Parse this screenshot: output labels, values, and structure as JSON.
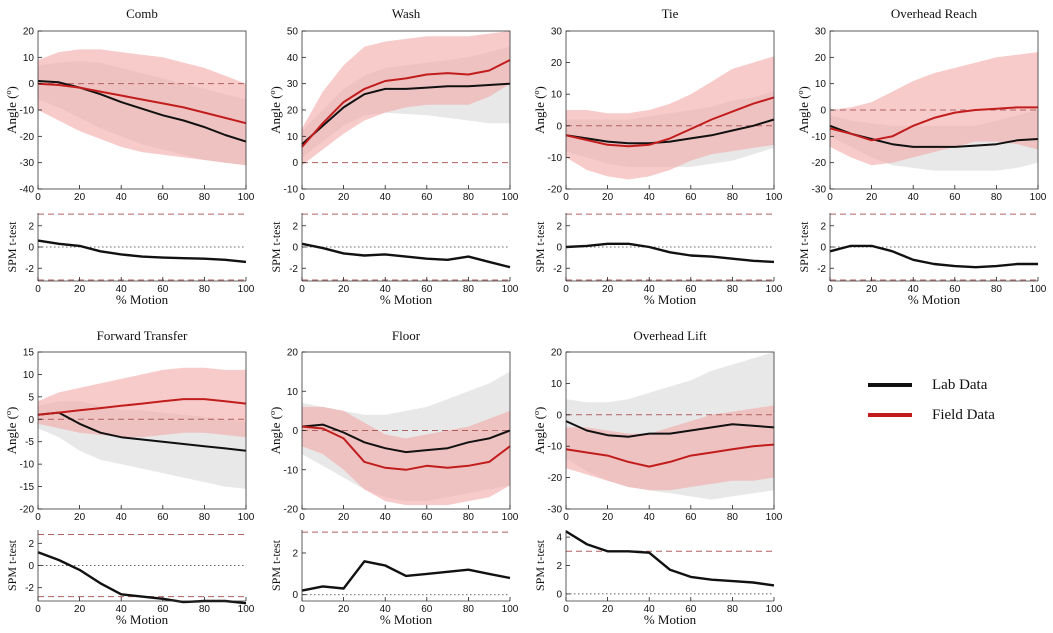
{
  "colors": {
    "lab": "#111111",
    "field": "#c21d1d",
    "field_band": "#f4a9a9",
    "lab_band": "#e6e6e6",
    "ref": "#b06060",
    "tick": "#222222"
  },
  "legend": {
    "lab_label": "Lab Data",
    "field_label": "Field Data"
  },
  "chart_data": [
    {
      "type": "line",
      "title": "Comb",
      "xlabel": "% Motion",
      "ylabel": "Angle (º)",
      "spm_ylabel": "SPM t-test",
      "x": [
        0,
        10,
        20,
        30,
        40,
        50,
        60,
        70,
        80,
        90,
        100
      ],
      "xticks": [
        0,
        20,
        40,
        60,
        80,
        100
      ],
      "ylim": [
        -40,
        20
      ],
      "yticks": [
        -40,
        -30,
        -20,
        -10,
        0,
        10,
        20
      ],
      "ref_lines": [
        0
      ],
      "series": [
        {
          "name": "Lab Data",
          "values": [
            1,
            0.5,
            -1.5,
            -4,
            -7,
            -9.5,
            -12,
            -14,
            -16.5,
            -19.5,
            -22
          ],
          "band_lower": [
            -6,
            -9,
            -13,
            -17,
            -20,
            -23,
            -25,
            -27,
            -29,
            -30,
            -31
          ],
          "band_upper": [
            7,
            8,
            8.5,
            8,
            6,
            4,
            2,
            0,
            -2,
            -4,
            -6
          ]
        },
        {
          "name": "Field Data",
          "values": [
            0,
            -0.5,
            -1.5,
            -3,
            -4.5,
            -6,
            -7.5,
            -9,
            -11,
            -13,
            -15
          ],
          "band_lower": [
            -10,
            -14,
            -18,
            -21,
            -24,
            -26,
            -27,
            -28,
            -29,
            -30,
            -31
          ],
          "band_upper": [
            9,
            12,
            13,
            13,
            12,
            11,
            10,
            8,
            6,
            3,
            0
          ]
        }
      ],
      "spm": {
        "ylim": [
          -3.2,
          3.2
        ],
        "yticks": [
          -2,
          0,
          2
        ],
        "threshold": 3.1,
        "values": [
          0.6,
          0.3,
          0.1,
          -0.4,
          -0.7,
          -0.9,
          -1.0,
          -1.05,
          -1.1,
          -1.2,
          -1.4
        ]
      }
    },
    {
      "type": "line",
      "title": "Wash",
      "xlabel": "% Motion",
      "ylabel": "Angle (º)",
      "spm_ylabel": "SPM t-test",
      "x": [
        0,
        10,
        20,
        30,
        40,
        50,
        60,
        70,
        80,
        90,
        100
      ],
      "xticks": [
        0,
        20,
        40,
        60,
        80,
        100
      ],
      "ylim": [
        -10,
        50
      ],
      "yticks": [
        -10,
        0,
        10,
        20,
        30,
        40,
        50
      ],
      "ref_lines": [
        0
      ],
      "series": [
        {
          "name": "Lab Data",
          "values": [
            7,
            14,
            21,
            26,
            28,
            28,
            28.5,
            29,
            29,
            29.5,
            30
          ],
          "band_lower": [
            2,
            8,
            14,
            18,
            19,
            18.5,
            18,
            17,
            16,
            15,
            15
          ],
          "band_upper": [
            12,
            20,
            28,
            33,
            36,
            37,
            38,
            39,
            40,
            42,
            44
          ]
        },
        {
          "name": "Field Data",
          "values": [
            6,
            15,
            23,
            28,
            31,
            32,
            33.5,
            34,
            33.5,
            35,
            39
          ],
          "band_lower": [
            -1,
            5,
            11,
            16,
            19,
            21,
            22,
            22,
            22,
            25,
            30
          ],
          "band_upper": [
            13,
            27,
            37,
            44,
            46,
            47,
            48,
            48,
            48,
            49,
            50
          ]
        }
      ],
      "spm": {
        "ylim": [
          -3.2,
          3.2
        ],
        "yticks": [
          -2,
          0,
          2
        ],
        "threshold": 3.1,
        "values": [
          0.3,
          -0.1,
          -0.6,
          -0.8,
          -0.7,
          -0.9,
          -1.1,
          -1.2,
          -0.9,
          -1.4,
          -1.9
        ]
      }
    },
    {
      "type": "line",
      "title": "Tie",
      "xlabel": "% Motion",
      "ylabel": "Angle (º)",
      "spm_ylabel": "SPM t-test",
      "x": [
        0,
        10,
        20,
        30,
        40,
        50,
        60,
        70,
        80,
        90,
        100
      ],
      "xticks": [
        0,
        20,
        40,
        60,
        80,
        100
      ],
      "ylim": [
        -20,
        30
      ],
      "yticks": [
        -20,
        -10,
        0,
        10,
        20,
        30
      ],
      "ref_lines": [
        0
      ],
      "series": [
        {
          "name": "Lab Data",
          "values": [
            -3,
            -4,
            -5,
            -5.5,
            -5.5,
            -5,
            -4,
            -3,
            -1.5,
            0,
            2
          ],
          "band_lower": [
            -8,
            -10,
            -12,
            -13,
            -13,
            -13,
            -13,
            -12,
            -11,
            -9,
            -7
          ],
          "band_upper": [
            2,
            2,
            2,
            2,
            3,
            4,
            5,
            6,
            8,
            9,
            11
          ]
        },
        {
          "name": "Field Data",
          "values": [
            -3,
            -4.5,
            -6,
            -6.5,
            -6,
            -4,
            -1,
            2,
            4.5,
            7,
            9
          ],
          "band_lower": [
            -10,
            -14,
            -16,
            -17,
            -16,
            -14,
            -11,
            -9,
            -8,
            -7,
            -6
          ],
          "band_upper": [
            5,
            5,
            4,
            4,
            5,
            7,
            10,
            14,
            18,
            20,
            22
          ]
        }
      ],
      "spm": {
        "ylim": [
          -3.2,
          3.2
        ],
        "yticks": [
          -2,
          0,
          2
        ],
        "threshold": 3.1,
        "values": [
          0,
          0.1,
          0.3,
          0.3,
          0,
          -0.5,
          -0.8,
          -0.9,
          -1.1,
          -1.3,
          -1.4
        ]
      }
    },
    {
      "type": "line",
      "title": "Overhead Reach",
      "xlabel": "% Motion",
      "ylabel": "Angle (º)",
      "spm_ylabel": "SPM t-test",
      "x": [
        0,
        10,
        20,
        30,
        40,
        50,
        60,
        70,
        80,
        90,
        100
      ],
      "xticks": [
        0,
        20,
        40,
        60,
        80,
        100
      ],
      "ylim": [
        -30,
        30
      ],
      "yticks": [
        -30,
        -20,
        -10,
        0,
        10,
        20,
        30
      ],
      "ref_lines": [
        0
      ],
      "series": [
        {
          "name": "Lab Data",
          "values": [
            -6,
            -9,
            -11,
            -13,
            -14,
            -14,
            -14,
            -13.5,
            -13,
            -11.5,
            -11
          ],
          "band_lower": [
            -10,
            -14,
            -18,
            -21,
            -22,
            -23,
            -23,
            -23,
            -23,
            -22,
            -20
          ],
          "band_upper": [
            -2,
            -4,
            -5,
            -6,
            -6,
            -6,
            -6,
            -6,
            -4,
            -2,
            0
          ]
        },
        {
          "name": "Field Data",
          "values": [
            -7,
            -9,
            -11.5,
            -10,
            -6,
            -3,
            -1,
            0,
            0.5,
            1,
            1
          ],
          "band_lower": [
            -14,
            -18,
            -21,
            -20,
            -18,
            -16,
            -14,
            -12,
            -12,
            -13,
            -15
          ],
          "band_upper": [
            0,
            1,
            3,
            7,
            11,
            14,
            16,
            18,
            20,
            21,
            22
          ]
        }
      ],
      "spm": {
        "ylim": [
          -3.2,
          3.2
        ],
        "yticks": [
          -2,
          0,
          2
        ],
        "threshold": 3.1,
        "values": [
          -0.4,
          0.1,
          0.1,
          -0.4,
          -1.2,
          -1.6,
          -1.8,
          -1.9,
          -1.8,
          -1.6,
          -1.6
        ]
      }
    },
    {
      "type": "line",
      "title": "Forward Transfer",
      "xlabel": "% Motion",
      "ylabel": "Angle (º)",
      "spm_ylabel": "SPM t-test",
      "x": [
        0,
        10,
        20,
        30,
        40,
        50,
        60,
        70,
        80,
        90,
        100
      ],
      "xticks": [
        0,
        20,
        40,
        60,
        80,
        100
      ],
      "ylim": [
        -20,
        15
      ],
      "yticks": [
        -20,
        -15,
        -10,
        -5,
        0,
        5,
        10,
        15
      ],
      "ref_lines": [
        0
      ],
      "series": [
        {
          "name": "Lab Data",
          "values": [
            1,
            1.5,
            -1,
            -3,
            -4,
            -4.5,
            -5,
            -5.5,
            -6,
            -6.5,
            -7
          ],
          "band_lower": [
            -2,
            -4,
            -7,
            -9,
            -10,
            -11,
            -12,
            -13,
            -14,
            -15,
            -15.5
          ],
          "band_upper": [
            3,
            4,
            4,
            3,
            2,
            2,
            1.5,
            1,
            0.5,
            0,
            -0.5
          ]
        },
        {
          "name": "Field Data",
          "values": [
            1,
            1.5,
            2,
            2.5,
            3,
            3.5,
            4,
            4.5,
            4.5,
            4,
            3.5
          ],
          "band_lower": [
            -1,
            -2,
            -3,
            -3.5,
            -4,
            -4,
            -3.5,
            -3,
            -3,
            -3.5,
            -4
          ],
          "band_upper": [
            4,
            6,
            7,
            8,
            9,
            10,
            11,
            11.5,
            11.5,
            11,
            11
          ]
        }
      ],
      "spm": {
        "ylim": [
          -3.2,
          3.2
        ],
        "yticks": [
          -2,
          0,
          2
        ],
        "threshold": 2.8,
        "values": [
          1.2,
          0.5,
          -0.4,
          -1.6,
          -2.6,
          -2.8,
          -3.0,
          -3.3,
          -3.2,
          -3.2,
          -3.4
        ]
      }
    },
    {
      "type": "line",
      "title": "Floor",
      "xlabel": "% Motion",
      "ylabel": "Angle (º)",
      "spm_ylabel": "SPM t-test",
      "x": [
        0,
        10,
        20,
        30,
        40,
        50,
        60,
        70,
        80,
        90,
        100
      ],
      "xticks": [
        0,
        20,
        40,
        60,
        80,
        100
      ],
      "ylim": [
        -20,
        20
      ],
      "yticks": [
        -20,
        -10,
        0,
        10,
        20
      ],
      "ref_lines": [
        0
      ],
      "series": [
        {
          "name": "Lab Data",
          "values": [
            1,
            1.5,
            -0.5,
            -3,
            -4.5,
            -5.5,
            -5,
            -4.5,
            -3,
            -2,
            0
          ],
          "band_lower": [
            -6,
            -9,
            -12,
            -15,
            -17,
            -18,
            -18,
            -17,
            -16,
            -15,
            -14
          ],
          "band_upper": [
            7,
            6,
            5,
            4,
            4,
            5,
            6,
            8,
            10,
            12,
            15
          ]
        },
        {
          "name": "Field Data",
          "values": [
            1,
            0.5,
            -2,
            -8,
            -9.5,
            -10,
            -9,
            -9.5,
            -9,
            -8,
            -4
          ],
          "band_lower": [
            -4,
            -6,
            -10,
            -15,
            -18,
            -19,
            -19,
            -19,
            -18,
            -17,
            -14
          ],
          "band_upper": [
            6,
            6,
            5,
            2,
            -1,
            -2,
            -1,
            0,
            1,
            3,
            5
          ]
        }
      ],
      "spm": {
        "ylim": [
          -0.3,
          3.1
        ],
        "yticks": [
          0,
          2
        ],
        "threshold": 3.0,
        "values": [
          0.2,
          0.4,
          0.3,
          1.6,
          1.4,
          0.9,
          1.0,
          1.1,
          1.2,
          1.0,
          0.8
        ]
      }
    },
    {
      "type": "line",
      "title": "Overhead Lift",
      "xlabel": "% Motion",
      "ylabel": "Angle (º)",
      "spm_ylabel": "SPM t-test",
      "x": [
        0,
        10,
        20,
        30,
        40,
        50,
        60,
        70,
        80,
        90,
        100
      ],
      "xticks": [
        0,
        20,
        40,
        60,
        80,
        100
      ],
      "ylim": [
        -30,
        20
      ],
      "yticks": [
        -30,
        -20,
        -10,
        0,
        10,
        20
      ],
      "ref_lines": [
        0
      ],
      "series": [
        {
          "name": "Lab Data",
          "values": [
            -2,
            -5,
            -6.5,
            -7,
            -6,
            -6,
            -5,
            -4,
            -3,
            -3.5,
            -4
          ],
          "band_lower": [
            -14,
            -18,
            -21,
            -23,
            -24,
            -25,
            -26,
            -27,
            -26,
            -25,
            -24
          ],
          "band_upper": [
            5,
            4,
            4,
            5,
            7,
            9,
            11,
            14,
            16,
            18,
            20
          ]
        },
        {
          "name": "Field Data",
          "values": [
            -11,
            -12,
            -13,
            -15,
            -16.5,
            -15,
            -13,
            -12,
            -11,
            -10,
            -9.5
          ],
          "band_lower": [
            -17,
            -19,
            -21,
            -23,
            -24,
            -24,
            -23,
            -22,
            -21,
            -21,
            -20
          ],
          "band_upper": [
            -4,
            -4,
            -5,
            -6,
            -6,
            -4,
            -2,
            0,
            1,
            2,
            3
          ]
        }
      ],
      "spm": {
        "ylim": [
          -0.5,
          4.5
        ],
        "yticks": [
          0,
          2,
          4
        ],
        "threshold": 3.0,
        "values": [
          4.4,
          3.5,
          3.0,
          3.0,
          2.9,
          1.7,
          1.2,
          1.0,
          0.9,
          0.8,
          0.6
        ]
      }
    }
  ]
}
